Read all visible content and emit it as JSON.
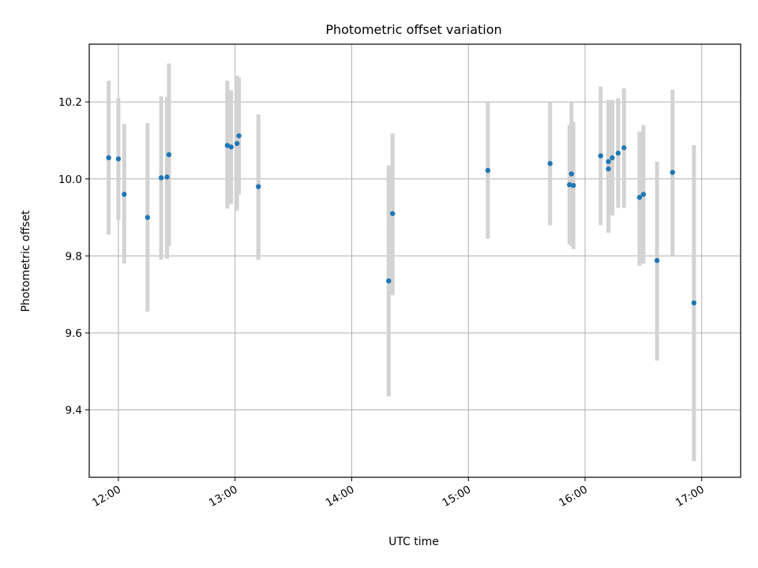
{
  "chart_data": {
    "type": "scatter",
    "title": "Photometric offset variation",
    "xlabel": "UTC time",
    "ylabel": "Photometric offset",
    "x_ticks": [
      "12:00",
      "13:00",
      "14:00",
      "15:00",
      "16:00",
      "17:00"
    ],
    "y_ticks": [
      9.4,
      9.6,
      9.8,
      10.0,
      10.2
    ],
    "xlim": [
      "11:45",
      "17:20"
    ],
    "ylim": [
      9.225,
      10.35
    ],
    "grid": true,
    "colors": {
      "marker": "#1f77b4",
      "errorbar": "#d3d3d3",
      "grid": "#b0b0b0"
    },
    "points": [
      {
        "t": "11:55",
        "y": 10.055,
        "lo": 9.855,
        "hi": 10.255
      },
      {
        "t": "12:00",
        "y": 10.052,
        "lo": 9.893,
        "hi": 10.21
      },
      {
        "t": "12:03",
        "y": 9.96,
        "lo": 9.78,
        "hi": 10.143
      },
      {
        "t": "12:15",
        "y": 9.9,
        "lo": 9.655,
        "hi": 10.145
      },
      {
        "t": "12:22",
        "y": 10.003,
        "lo": 9.79,
        "hi": 10.215
      },
      {
        "t": "12:25",
        "y": 10.005,
        "lo": 9.793,
        "hi": 10.213
      },
      {
        "t": "12:26",
        "y": 10.063,
        "lo": 9.825,
        "hi": 10.3
      },
      {
        "t": "12:56",
        "y": 10.087,
        "lo": 9.923,
        "hi": 10.255
      },
      {
        "t": "12:58",
        "y": 10.083,
        "lo": 9.935,
        "hi": 10.23
      },
      {
        "t": "13:01",
        "y": 10.092,
        "lo": 9.918,
        "hi": 10.268
      },
      {
        "t": "13:02",
        "y": 10.112,
        "lo": 9.96,
        "hi": 10.263
      },
      {
        "t": "13:12",
        "y": 9.98,
        "lo": 9.79,
        "hi": 10.168
      },
      {
        "t": "14:19",
        "y": 9.735,
        "lo": 9.435,
        "hi": 10.035
      },
      {
        "t": "14:21",
        "y": 9.91,
        "lo": 9.698,
        "hi": 10.118
      },
      {
        "t": "15:10",
        "y": 10.022,
        "lo": 9.845,
        "hi": 10.198
      },
      {
        "t": "15:42",
        "y": 10.04,
        "lo": 9.88,
        "hi": 10.2
      },
      {
        "t": "15:52",
        "y": 9.985,
        "lo": 9.83,
        "hi": 10.14
      },
      {
        "t": "15:53",
        "y": 10.013,
        "lo": 9.826,
        "hi": 10.2
      },
      {
        "t": "15:54",
        "y": 9.983,
        "lo": 9.818,
        "hi": 10.148
      },
      {
        "t": "16:08",
        "y": 10.06,
        "lo": 9.88,
        "hi": 10.24
      },
      {
        "t": "16:12",
        "y": 10.026,
        "lo": 9.86,
        "hi": 10.2
      },
      {
        "t": "16:12",
        "y": 10.045,
        "lo": 9.88,
        "hi": 10.205
      },
      {
        "t": "16:14",
        "y": 10.055,
        "lo": 9.905,
        "hi": 10.205
      },
      {
        "t": "16:17",
        "y": 10.067,
        "lo": 9.925,
        "hi": 10.21
      },
      {
        "t": "16:20",
        "y": 10.081,
        "lo": 9.925,
        "hi": 10.235
      },
      {
        "t": "16:28",
        "y": 9.952,
        "lo": 9.775,
        "hi": 10.123
      },
      {
        "t": "16:30",
        "y": 9.96,
        "lo": 9.78,
        "hi": 10.14
      },
      {
        "t": "16:37",
        "y": 9.788,
        "lo": 9.528,
        "hi": 10.045
      },
      {
        "t": "16:45",
        "y": 10.017,
        "lo": 9.8,
        "hi": 10.232
      },
      {
        "t": "16:56",
        "y": 9.678,
        "lo": 9.267,
        "hi": 10.088
      }
    ]
  }
}
